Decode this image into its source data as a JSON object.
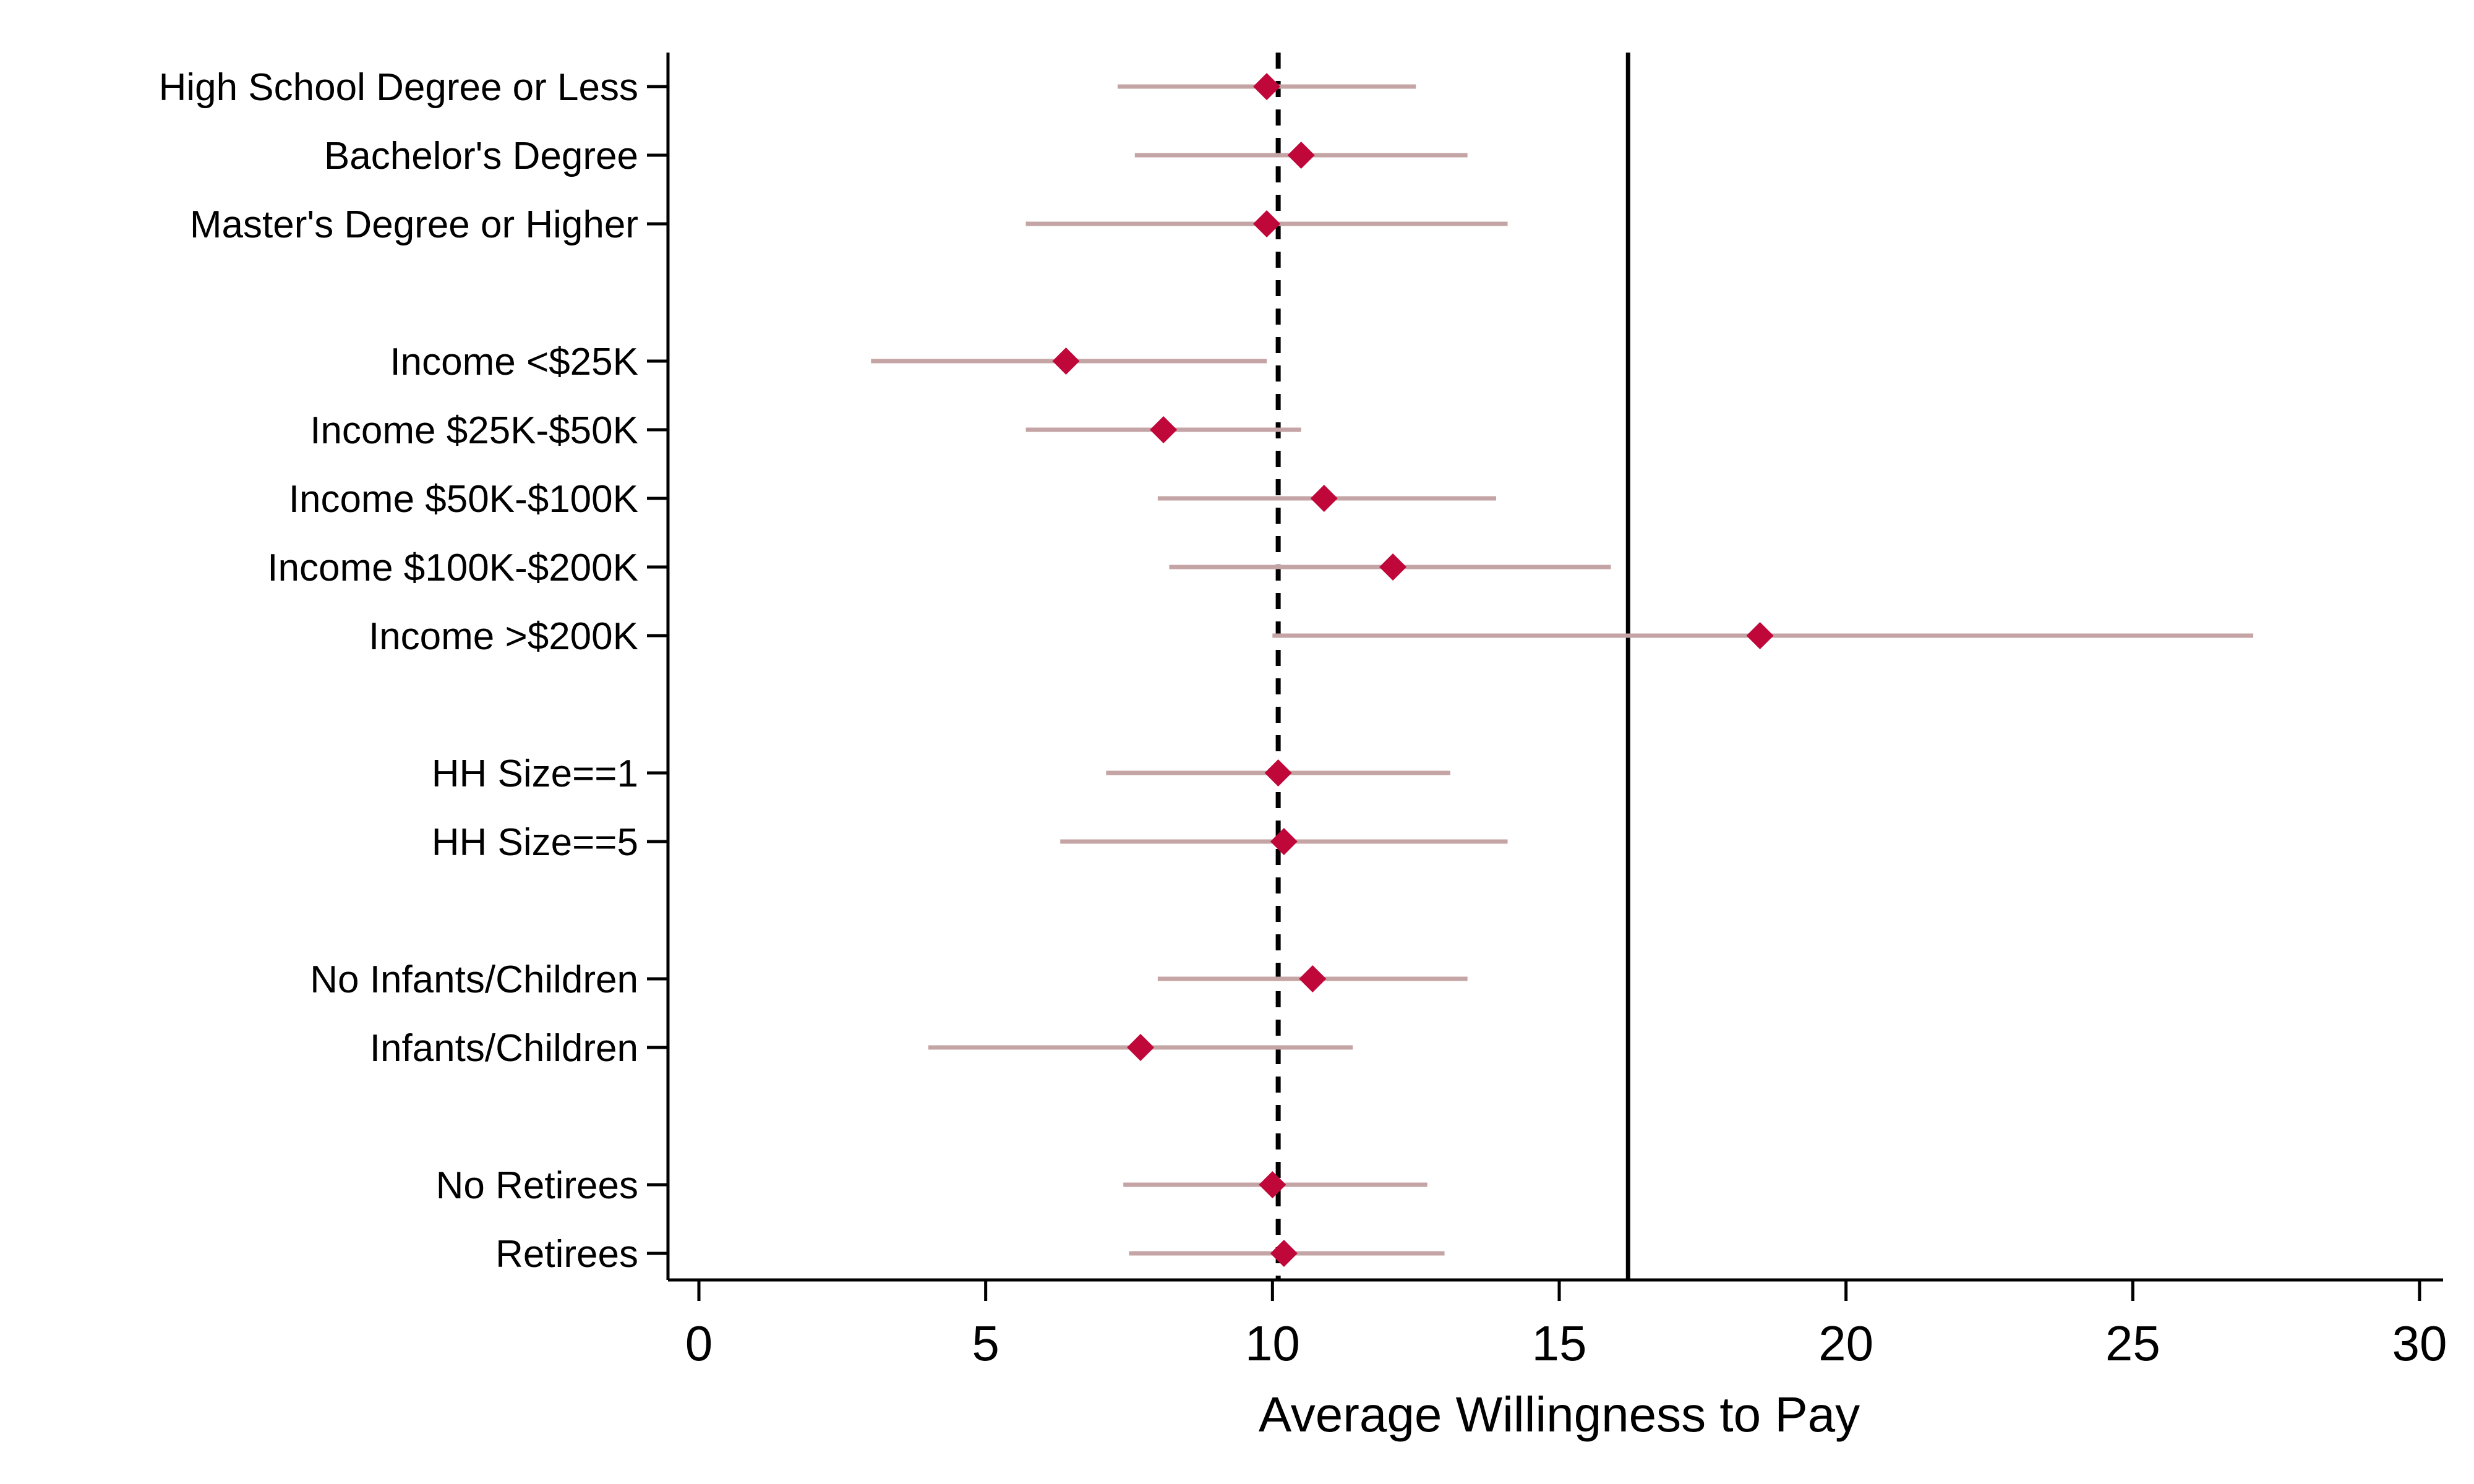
{
  "chart_data": {
    "type": "scatter",
    "subtype": "coefficient-plot",
    "orientation": "horizontal",
    "xlabel": "Average Willingness to Pay",
    "ylabel": "",
    "title": "",
    "xlim": [
      0,
      30
    ],
    "xticks": [
      0,
      5,
      10,
      15,
      20,
      25,
      30
    ],
    "grid": false,
    "legend": "none",
    "colors": {
      "point": "#c0073a",
      "ci": "#c4a4a4",
      "axis": "#000000",
      "reference": "#000000"
    },
    "reference_lines": [
      {
        "x": 10.1,
        "style": "dashed"
      },
      {
        "x": 16.2,
        "style": "solid"
      }
    ],
    "categories": [
      {
        "label": "High School Degree or Less",
        "group": 0,
        "value": 9.9,
        "ci": [
          7.3,
          12.5
        ]
      },
      {
        "label": "Bachelor's Degree",
        "group": 0,
        "value": 10.5,
        "ci": [
          7.6,
          13.4
        ]
      },
      {
        "label": "Master's Degree or Higher",
        "group": 0,
        "value": 9.9,
        "ci": [
          5.7,
          14.1
        ]
      },
      {
        "label": "Income <$25K",
        "group": 1,
        "value": 6.4,
        "ci": [
          3.0,
          9.9
        ]
      },
      {
        "label": "Income $25K-$50K",
        "group": 1,
        "value": 8.1,
        "ci": [
          5.7,
          10.5
        ]
      },
      {
        "label": "Income $50K-$100K",
        "group": 1,
        "value": 10.9,
        "ci": [
          8.0,
          13.9
        ]
      },
      {
        "label": "Income $100K-$200K",
        "group": 1,
        "value": 12.1,
        "ci": [
          8.2,
          15.9
        ]
      },
      {
        "label": "Income >$200K",
        "group": 1,
        "value": 18.5,
        "ci": [
          10.0,
          27.1
        ]
      },
      {
        "label": "HH Size==1",
        "group": 2,
        "value": 10.1,
        "ci": [
          7.1,
          13.1
        ]
      },
      {
        "label": "HH Size==5",
        "group": 2,
        "value": 10.2,
        "ci": [
          6.3,
          14.1
        ]
      },
      {
        "label": "No Infants/Children",
        "group": 3,
        "value": 10.7,
        "ci": [
          8.0,
          13.4
        ]
      },
      {
        "label": "Infants/Children",
        "group": 3,
        "value": 7.7,
        "ci": [
          4.0,
          11.4
        ]
      },
      {
        "label": "No Retirees",
        "group": 4,
        "value": 10.0,
        "ci": [
          7.4,
          12.7
        ]
      },
      {
        "label": "Retirees",
        "group": 4,
        "value": 10.2,
        "ci": [
          7.5,
          13.0
        ]
      }
    ]
  }
}
